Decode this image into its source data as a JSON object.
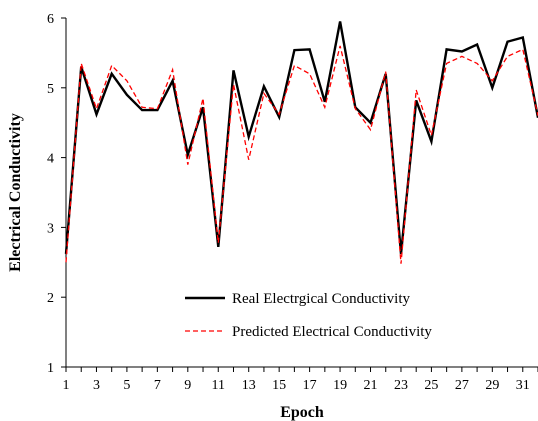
{
  "chart_data": {
    "type": "line",
    "title": "",
    "xlabel": "Epoch",
    "ylabel": "Electrical Conductivity",
    "x": [
      1,
      2,
      3,
      4,
      5,
      6,
      7,
      8,
      9,
      10,
      11,
      12,
      13,
      14,
      15,
      16,
      17,
      18,
      19,
      20,
      21,
      22,
      23,
      24,
      25,
      26,
      27,
      28,
      29,
      30,
      31,
      32
    ],
    "xlim": [
      1,
      32
    ],
    "x_tick_labels": [
      "1",
      "3",
      "5",
      "7",
      "9",
      "11",
      "13",
      "15",
      "17",
      "19",
      "21",
      "23",
      "25",
      "27",
      "29",
      "31"
    ],
    "ylim": [
      1,
      6
    ],
    "y_ticks": [
      1,
      2,
      3,
      4,
      5,
      6
    ],
    "grid": false,
    "legend_position": "lower-center",
    "series": [
      {
        "name": "Real Electrgical Conductivity",
        "color": "#000000",
        "style": "solid",
        "values": [
          2.62,
          5.3,
          4.62,
          5.2,
          4.9,
          4.68,
          4.68,
          5.1,
          4.04,
          4.72,
          2.72,
          5.25,
          4.3,
          5.02,
          4.58,
          5.54,
          5.55,
          4.8,
          5.95,
          4.72,
          4.5,
          5.2,
          2.62,
          4.82,
          4.23,
          5.55,
          5.52,
          5.62,
          5.0,
          5.66,
          5.72,
          4.57
        ]
      },
      {
        "name": "Predicted Electrical Conductivity",
        "color": "#ff0000",
        "style": "dashed",
        "values": [
          2.5,
          5.35,
          4.7,
          5.32,
          5.1,
          4.72,
          4.7,
          5.26,
          3.9,
          4.85,
          2.78,
          5.05,
          3.97,
          4.92,
          4.62,
          5.32,
          5.2,
          4.72,
          5.6,
          4.7,
          4.4,
          5.23,
          2.48,
          4.97,
          4.32,
          5.35,
          5.45,
          5.35,
          5.1,
          5.45,
          5.55,
          4.6
        ]
      }
    ]
  }
}
